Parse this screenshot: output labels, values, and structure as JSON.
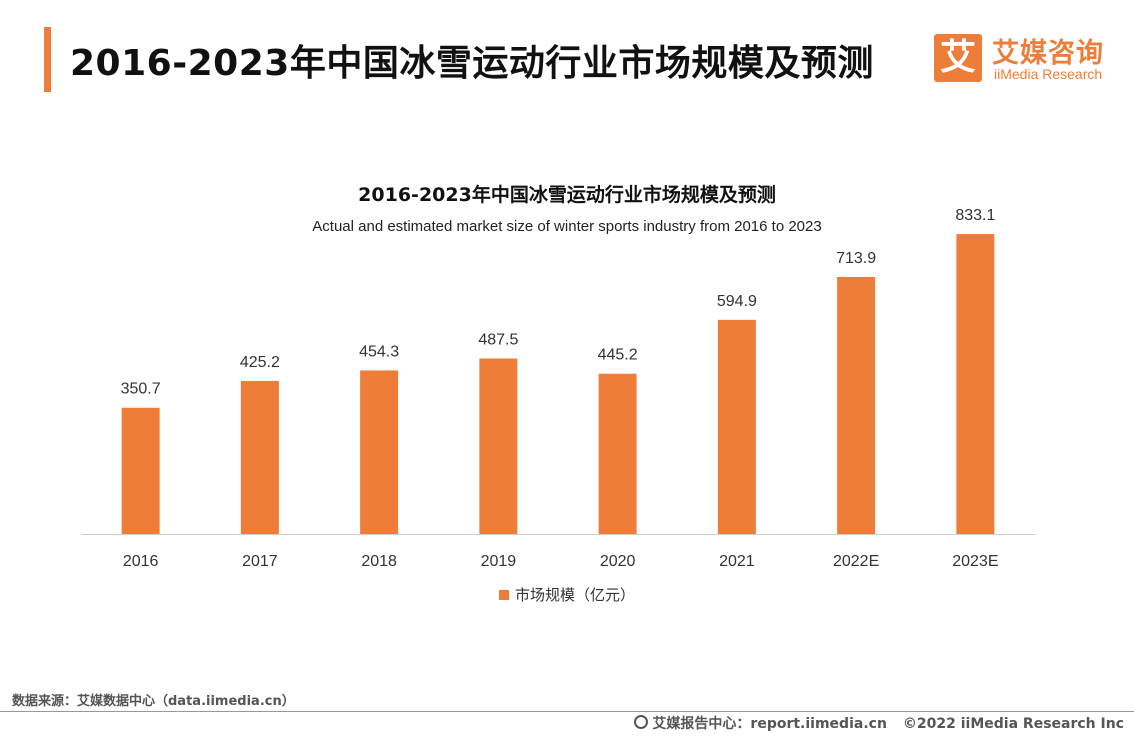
{
  "header": {
    "title": "2016-2023年中国冰雪运动行业市场规模及预测"
  },
  "logo": {
    "mark": "艾",
    "cn": "艾媒咨询",
    "en": "iiMedia Research"
  },
  "chart_data": {
    "type": "bar",
    "title": "2016-2023年中国冰雪运动行业市场规模及预测",
    "subtitle": "Actual and estimated market size of winter sports industry from 2016 to 2023",
    "categories": [
      "2016",
      "2017",
      "2018",
      "2019",
      "2020",
      "2021",
      "2022E",
      "2023E"
    ],
    "series": [
      {
        "name": "市场规模（亿元）",
        "values": [
          350.7,
          425.2,
          454.3,
          487.5,
          445.2,
          594.9,
          713.9,
          833.1
        ],
        "color": "#ef7d3a"
      }
    ],
    "ylim": [
      0,
      900
    ],
    "grid": false,
    "legend_position": "bottom"
  },
  "footer": {
    "source": "数据来源：艾媒数据中心（data.iimedia.cn）",
    "report": "艾媒报告中心：report.iimedia.cn",
    "copyright": "©2022  iiMedia Research  Inc"
  }
}
